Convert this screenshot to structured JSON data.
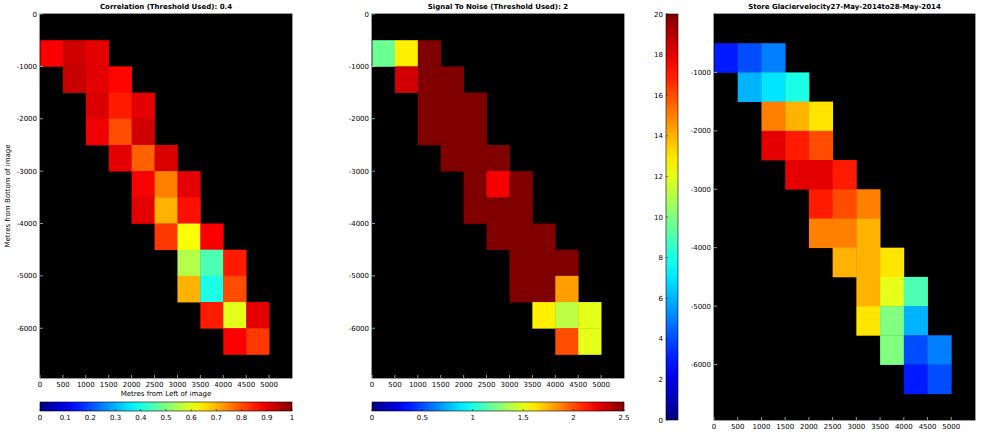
{
  "chart_data": [
    {
      "type": "heatmap",
      "title": "Correlation (Threshold Used):  0.4",
      "xlabel": "Metres from Left of image",
      "ylabel": "Metres from Bottom of image",
      "x": [
        250,
        750,
        1250,
        1750,
        2250,
        2750,
        3250,
        3750,
        4250,
        4750,
        5250
      ],
      "y": [
        -750,
        -1250,
        -1750,
        -2250,
        -2750,
        -3250,
        -3750,
        -4250,
        -4750,
        -5250,
        -5750,
        -6250
      ],
      "values": [
        [
          0.88,
          0.92,
          0.9,
          null,
          null,
          null,
          null,
          null,
          null,
          null,
          null
        ],
        [
          null,
          0.93,
          0.9,
          0.87,
          null,
          null,
          null,
          null,
          null,
          null,
          null
        ],
        [
          null,
          null,
          0.91,
          0.85,
          0.9,
          null,
          null,
          null,
          null,
          null,
          null
        ],
        [
          null,
          null,
          0.89,
          0.8,
          0.92,
          null,
          null,
          null,
          null,
          null,
          null
        ],
        [
          null,
          null,
          null,
          0.9,
          0.78,
          0.91,
          null,
          null,
          null,
          null,
          null
        ],
        [
          null,
          null,
          null,
          null,
          0.88,
          0.75,
          0.9,
          null,
          null,
          null,
          null
        ],
        [
          null,
          null,
          null,
          null,
          0.9,
          0.7,
          0.86,
          null,
          null,
          null,
          null
        ],
        [
          null,
          null,
          null,
          null,
          null,
          0.82,
          0.62,
          0.88,
          null,
          null,
          null
        ],
        [
          null,
          null,
          null,
          null,
          null,
          null,
          0.55,
          0.45,
          0.85,
          null,
          null
        ],
        [
          null,
          null,
          null,
          null,
          null,
          null,
          0.7,
          0.4,
          0.8,
          null,
          null
        ],
        [
          null,
          null,
          null,
          null,
          null,
          null,
          null,
          0.85,
          0.6,
          0.9,
          null
        ],
        [
          null,
          null,
          null,
          null,
          null,
          null,
          null,
          null,
          0.88,
          0.82,
          null
        ]
      ],
      "xlim": [
        0,
        5500
      ],
      "ylim": [
        -6950,
        0
      ],
      "xticks": [
        0,
        500,
        1000,
        1500,
        2000,
        2500,
        3000,
        3500,
        4000,
        4500,
        5000
      ],
      "yticks": [
        0,
        -1000,
        -2000,
        -3000,
        -4000,
        -5000,
        -6000
      ],
      "colorbar": {
        "range": [
          0,
          1
        ],
        "ticks": [
          0,
          0.1,
          0.2,
          0.3,
          0.4,
          0.5,
          0.6,
          0.7,
          0.8,
          0.9,
          1
        ]
      }
    },
    {
      "type": "heatmap",
      "title": "Signal To Noise (Threshold Used):  2",
      "x": [
        250,
        750,
        1250,
        1750,
        2250,
        2750,
        3250,
        3750,
        4250,
        4750,
        5250
      ],
      "y": [
        -750,
        -1250,
        -1750,
        -2250,
        -2750,
        -3250,
        -3750,
        -4250,
        -4750,
        -5250,
        -5750,
        -6250
      ],
      "values": [
        [
          1.2,
          1.6,
          2.5,
          null,
          null,
          null,
          null,
          null,
          null,
          null,
          null
        ],
        [
          null,
          2.3,
          2.5,
          2.5,
          null,
          null,
          null,
          null,
          null,
          null,
          null
        ],
        [
          null,
          null,
          2.5,
          2.5,
          2.5,
          null,
          null,
          null,
          null,
          null,
          null
        ],
        [
          null,
          null,
          2.5,
          2.5,
          2.5,
          null,
          null,
          null,
          null,
          null,
          null
        ],
        [
          null,
          null,
          null,
          2.5,
          2.5,
          2.5,
          null,
          null,
          null,
          null,
          null
        ],
        [
          null,
          null,
          null,
          null,
          2.5,
          2.2,
          2.5,
          null,
          null,
          null,
          null
        ],
        [
          null,
          null,
          null,
          null,
          2.5,
          2.5,
          2.5,
          null,
          null,
          null,
          null
        ],
        [
          null,
          null,
          null,
          null,
          null,
          2.5,
          2.5,
          2.5,
          null,
          null,
          null
        ],
        [
          null,
          null,
          null,
          null,
          null,
          null,
          2.5,
          2.5,
          2.5,
          null,
          null
        ],
        [
          null,
          null,
          null,
          null,
          null,
          null,
          2.5,
          2.5,
          1.8,
          null,
          null
        ],
        [
          null,
          null,
          null,
          null,
          null,
          null,
          null,
          1.6,
          1.4,
          1.5,
          null
        ],
        [
          null,
          null,
          null,
          null,
          null,
          null,
          null,
          null,
          2.0,
          1.5,
          null
        ]
      ],
      "xlim": [
        0,
        5500
      ],
      "ylim": [
        -6950,
        0
      ],
      "xticks": [
        0,
        500,
        1000,
        1500,
        2000,
        2500,
        3000,
        3500,
        4000,
        4500,
        5000
      ],
      "yticks": [
        0,
        -1000,
        -2000,
        -3000,
        -4000,
        -5000,
        -6000
      ],
      "colorbar": {
        "range": [
          0,
          2.5
        ],
        "ticks": [
          0,
          0.5,
          1,
          1.5,
          2,
          2.5
        ]
      }
    },
    {
      "type": "heatmap",
      "title": "Store Glaciervelocity27-May-2014to28-May-2014",
      "x": [
        250,
        750,
        1250,
        1750,
        2250,
        2750,
        3250,
        3750,
        4250,
        4750,
        5250
      ],
      "y": [
        -750,
        -1250,
        -1750,
        -2250,
        -2750,
        -3250,
        -3750,
        -4250,
        -4750,
        -5250,
        -5750,
        -6250
      ],
      "values": [
        [
          3,
          4,
          5,
          null,
          null,
          null,
          null,
          null,
          null,
          null,
          null
        ],
        [
          null,
          6,
          7,
          8,
          null,
          null,
          null,
          null,
          null,
          null,
          null
        ],
        [
          null,
          null,
          15,
          14,
          13,
          null,
          null,
          null,
          null,
          null,
          null
        ],
        [
          null,
          null,
          18,
          17,
          16,
          null,
          null,
          null,
          null,
          null,
          null
        ],
        [
          null,
          null,
          null,
          18,
          18,
          17,
          null,
          null,
          null,
          null,
          null
        ],
        [
          null,
          null,
          null,
          null,
          17,
          16,
          15,
          null,
          null,
          null,
          null
        ],
        [
          null,
          null,
          null,
          null,
          15,
          15,
          14,
          null,
          null,
          null,
          null
        ],
        [
          null,
          null,
          null,
          null,
          null,
          14,
          14,
          13,
          null,
          null,
          null
        ],
        [
          null,
          null,
          null,
          null,
          null,
          null,
          14,
          12,
          9,
          null,
          null
        ],
        [
          null,
          null,
          null,
          null,
          null,
          null,
          13,
          10,
          6,
          null,
          null
        ],
        [
          null,
          null,
          null,
          null,
          null,
          null,
          null,
          10,
          4,
          5,
          null
        ],
        [
          null,
          null,
          null,
          null,
          null,
          null,
          null,
          null,
          3,
          4,
          null
        ]
      ],
      "xlim": [
        0,
        5500
      ],
      "ylim": [
        -6950,
        0
      ],
      "xticks": [
        0,
        500,
        1000,
        1500,
        2000,
        2500,
        3000,
        3500,
        4000,
        4500,
        5000
      ],
      "yticks": [
        -1000,
        -2000,
        -3000,
        -4000,
        -5000,
        -6000
      ],
      "colorbar": {
        "range": [
          0,
          20
        ],
        "ticks": [
          0,
          2,
          4,
          6,
          8,
          10,
          12,
          14,
          16,
          18,
          20
        ]
      }
    }
  ]
}
